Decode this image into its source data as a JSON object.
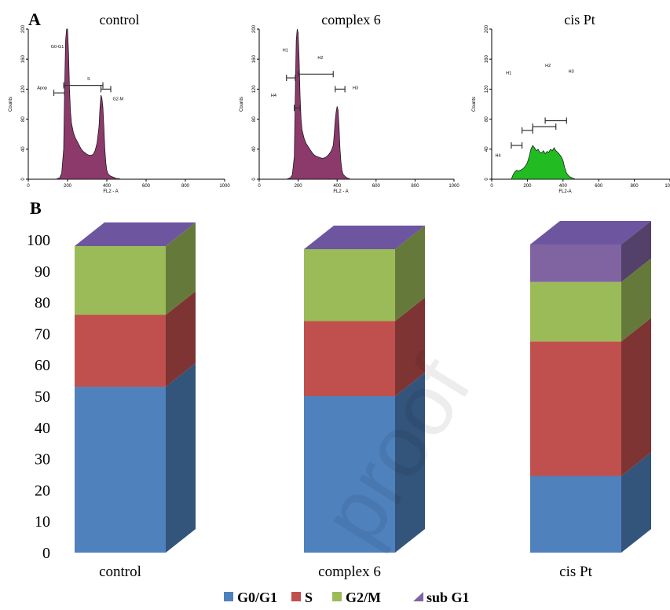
{
  "chart_data": [
    {
      "type": "area",
      "panel_label": "A",
      "title": "control",
      "xlabel": "FL2 - A",
      "ylabel": "Counts",
      "xlim": [
        0,
        1000
      ],
      "ylim": [
        0,
        200
      ],
      "xticks": [
        0,
        200,
        400,
        600,
        800,
        1000
      ],
      "yticks": [
        0,
        40,
        80,
        120,
        160,
        200
      ],
      "fill_color": "#8b3a6b",
      "gate_labels": [
        "G0-G1",
        "Apop",
        "S",
        "G2-M"
      ],
      "series": [
        {
          "x": [
            140,
            160,
            170,
            180,
            185,
            190,
            195,
            200,
            205,
            210,
            215,
            220,
            230,
            240,
            250,
            260,
            270,
            280,
            290,
            300,
            310,
            320,
            330,
            340,
            350,
            360,
            365,
            370,
            375,
            380,
            385,
            390,
            395,
            400,
            405,
            410,
            420,
            430,
            440,
            450,
            460,
            470
          ],
          "y": [
            0,
            2,
            8,
            40,
            120,
            185,
            200,
            200,
            170,
            120,
            90,
            75,
            62,
            55,
            50,
            45,
            40,
            37,
            35,
            33,
            32,
            32,
            33,
            38,
            48,
            70,
            95,
            112,
            108,
            96,
            70,
            40,
            22,
            12,
            8,
            6,
            4,
            3,
            2,
            1,
            1,
            0
          ]
        }
      ]
    },
    {
      "type": "area",
      "title": "complex 6",
      "xlabel": "FL2 - A",
      "ylabel": "Counts",
      "xlim": [
        0,
        1000
      ],
      "ylim": [
        0,
        200
      ],
      "xticks": [
        0,
        200,
        400,
        600,
        800,
        1000
      ],
      "yticks": [
        0,
        40,
        80,
        120,
        160,
        200
      ],
      "fill_color": "#8b3a6b",
      "gate_labels": [
        "H1",
        "H2",
        "H4",
        "H3"
      ],
      "series": [
        {
          "x": [
            140,
            160,
            170,
            180,
            185,
            190,
            195,
            200,
            205,
            210,
            215,
            220,
            230,
            240,
            250,
            260,
            270,
            280,
            290,
            300,
            310,
            320,
            330,
            340,
            350,
            360,
            370,
            380,
            385,
            390,
            395,
            400,
            405,
            410,
            415,
            420,
            425,
            430,
            440,
            450,
            460,
            470
          ],
          "y": [
            0,
            2,
            6,
            30,
            110,
            185,
            200,
            195,
            160,
            110,
            80,
            66,
            55,
            48,
            44,
            40,
            36,
            33,
            31,
            30,
            29,
            28,
            28,
            29,
            31,
            34,
            38,
            45,
            60,
            78,
            90,
            97,
            92,
            70,
            40,
            22,
            12,
            7,
            4,
            2,
            1,
            0
          ]
        }
      ]
    },
    {
      "type": "area",
      "title": "cis Pt",
      "xlabel": "FL2-A",
      "ylabel": "Counts",
      "xlim": [
        0,
        1000
      ],
      "ylim": [
        0,
        200
      ],
      "xticks": [
        0,
        200,
        400,
        600,
        800,
        1000
      ],
      "yticks": [
        0,
        40,
        80,
        120,
        160,
        200
      ],
      "fill_color": "#22bb22",
      "gate_labels": [
        "H1",
        "H2",
        "H3",
        "H4"
      ],
      "series": [
        {
          "x": [
            110,
            120,
            130,
            140,
            150,
            160,
            170,
            180,
            190,
            200,
            210,
            220,
            230,
            240,
            250,
            260,
            270,
            280,
            290,
            300,
            310,
            320,
            330,
            340,
            350,
            360,
            370,
            380,
            390,
            400,
            410,
            420,
            430,
            440,
            450,
            460,
            470
          ],
          "y": [
            0,
            6,
            10,
            12,
            11,
            12,
            13,
            15,
            18,
            22,
            30,
            40,
            45,
            42,
            38,
            40,
            36,
            35,
            38,
            34,
            37,
            36,
            40,
            38,
            42,
            38,
            36,
            33,
            30,
            25,
            15,
            8,
            5,
            3,
            2,
            1,
            0
          ]
        }
      ]
    },
    {
      "type": "bar",
      "panel_label": "B",
      "stacked": true,
      "categories": [
        "control",
        "complex 6",
        "cis Pt"
      ],
      "ylim": [
        0,
        100
      ],
      "yticks": [
        0,
        10,
        20,
        30,
        40,
        50,
        60,
        70,
        80,
        90,
        100
      ],
      "series": [
        {
          "name": "G0/G1",
          "color": "#4f81bd",
          "values": [
            53,
            50,
            24.5
          ]
        },
        {
          "name": "S",
          "color": "#c0504d",
          "values": [
            23,
            24,
            43
          ]
        },
        {
          "name": "G2/M",
          "color": "#9bbb59",
          "values": [
            22,
            23,
            19
          ]
        },
        {
          "name": "sub G1",
          "color": "#8064a2",
          "values": [
            0,
            0,
            12
          ]
        }
      ],
      "legend_position": "bottom"
    }
  ],
  "watermark": "proof"
}
